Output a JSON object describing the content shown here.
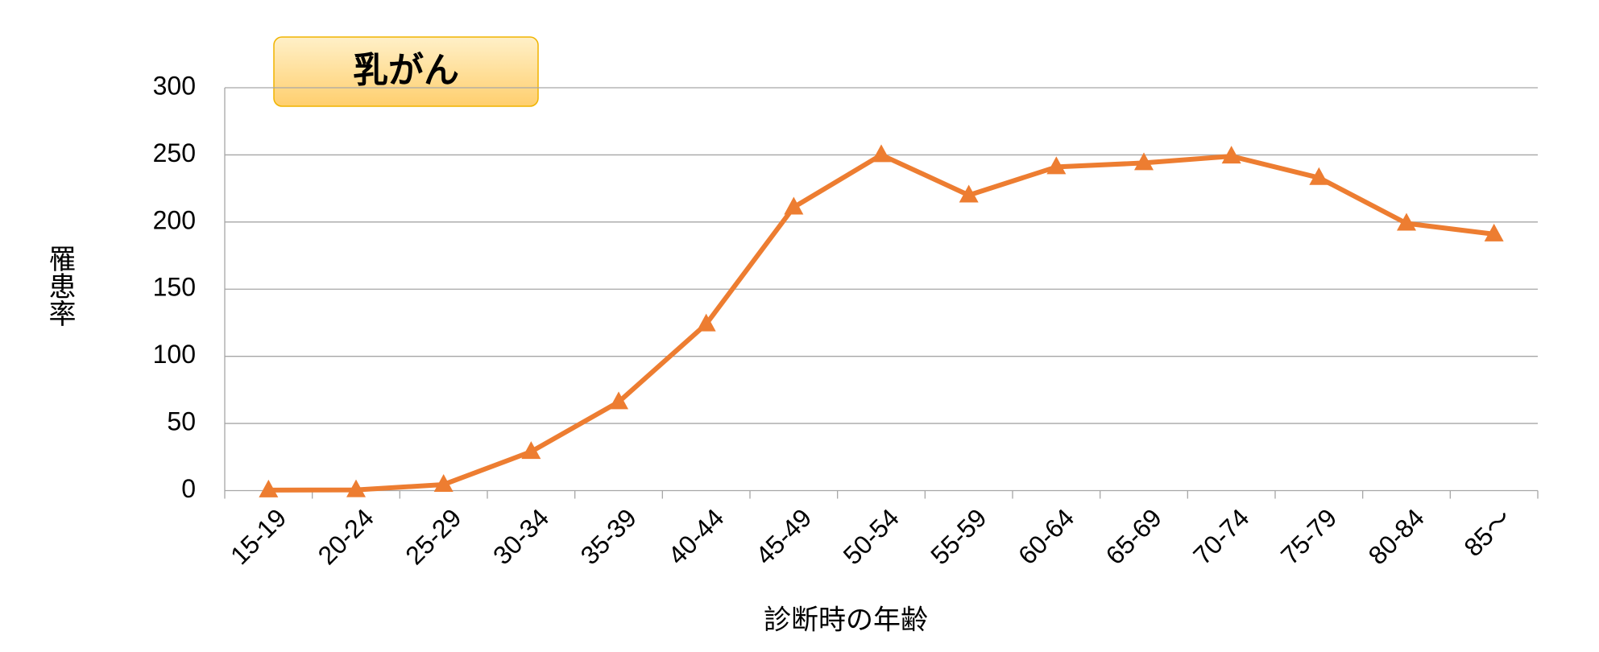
{
  "chart_data": {
    "type": "line",
    "title": "乳がん",
    "y_label": "罹患率",
    "x_label": "診断時の年齢",
    "categories": [
      "15-19",
      "20-24",
      "25-29",
      "30-34",
      "35-39",
      "40-44",
      "45-49",
      "50-54",
      "55-59",
      "60-64",
      "65-69",
      "70-74",
      "75-79",
      "80-84",
      "85～"
    ],
    "series": [
      {
        "color": "#ed7d31",
        "values": [
          0.4,
          0.5,
          4.5,
          29,
          66,
          124,
          211,
          250,
          220,
          241,
          244,
          249,
          233,
          199,
          191
        ]
      }
    ],
    "ylim": [
      0,
      300
    ],
    "yticks": [
      0,
      50,
      100,
      150,
      200,
      250,
      300
    ],
    "grid": true
  }
}
